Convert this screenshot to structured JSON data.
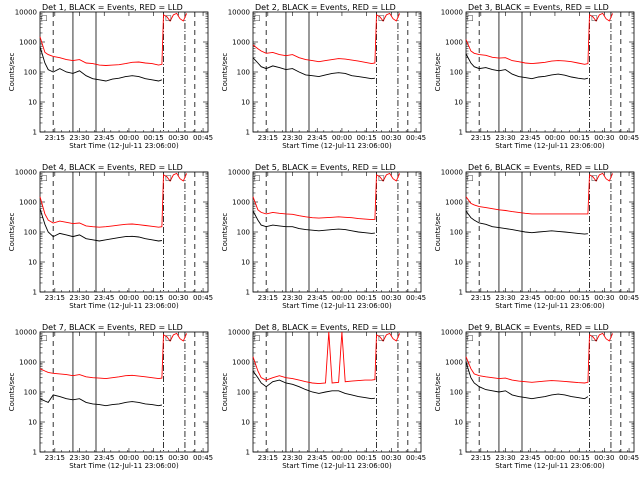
{
  "chart_data": {
    "type": "line",
    "layout": "3x3 grid",
    "xlabel": "Start Time (12-Jul-11 23:06:00)",
    "ylabel": "Counts/sec",
    "y_scale": "log",
    "ylim": [
      1,
      10000
    ],
    "ytick_labels": [
      "1",
      "10",
      "100",
      "1000",
      "10000"
    ],
    "xtick_labels": [
      "23:15",
      "23:30",
      "23:45",
      "00:00",
      "00:15",
      "00:30",
      "00:45"
    ],
    "x_unit": "minutes after start time",
    "xlim": [
      0,
      102
    ],
    "xticks": [
      9,
      24,
      39,
      54,
      69,
      84,
      99
    ],
    "series_colors": {
      "events": "#000000",
      "lld": "#ff0000"
    },
    "corner_markers": [
      "□",
      "□"
    ],
    "panels": [
      {
        "title": "Det 1, BLACK = Events, RED = LLD",
        "dashed_lines": [
          8,
          94
        ],
        "solid_lines": [
          20,
          34
        ],
        "dashdot_lines": [
          75,
          88
        ],
        "black_x": [
          0,
          3,
          5,
          8,
          12,
          16,
          20,
          24,
          28,
          32,
          36,
          40,
          44,
          48,
          52,
          56,
          60,
          64,
          68,
          72,
          74
        ],
        "black_y": [
          700,
          200,
          120,
          100,
          130,
          100,
          90,
          110,
          75,
          60,
          55,
          50,
          58,
          62,
          70,
          75,
          70,
          60,
          55,
          50,
          55
        ],
        "red_x": [
          0,
          3,
          5,
          8,
          12,
          16,
          20,
          24,
          28,
          32,
          36,
          40,
          44,
          48,
          52,
          56,
          60,
          64,
          68,
          72,
          74,
          75,
          77,
          79,
          81,
          83,
          85,
          87,
          89
        ],
        "red_y": [
          1500,
          450,
          380,
          330,
          300,
          260,
          240,
          260,
          200,
          190,
          170,
          165,
          170,
          175,
          190,
          210,
          215,
          200,
          190,
          170,
          180,
          8000,
          7000,
          5000,
          8000,
          9000,
          6000,
          5000,
          9000
        ]
      },
      {
        "title": "Det 2, BLACK = Events, RED = LLD",
        "dashed_lines": [
          8,
          94
        ],
        "solid_lines": [
          20,
          34
        ],
        "dashdot_lines": [
          75,
          88
        ],
        "black_x": [
          0,
          3,
          5,
          8,
          12,
          16,
          20,
          24,
          28,
          32,
          36,
          40,
          44,
          48,
          52,
          56,
          60,
          64,
          68,
          72,
          74
        ],
        "black_y": [
          300,
          200,
          150,
          130,
          160,
          140,
          120,
          130,
          100,
          80,
          75,
          70,
          80,
          90,
          95,
          90,
          75,
          70,
          65,
          60,
          62
        ],
        "red_x": [
          0,
          3,
          5,
          8,
          12,
          16,
          20,
          24,
          28,
          32,
          36,
          40,
          44,
          48,
          52,
          56,
          60,
          64,
          68,
          72,
          74,
          75,
          77,
          79,
          81,
          83,
          85,
          87,
          89
        ],
        "red_y": [
          800,
          600,
          500,
          420,
          450,
          380,
          350,
          380,
          300,
          260,
          240,
          220,
          240,
          260,
          280,
          270,
          250,
          230,
          210,
          190,
          200,
          8000,
          7000,
          5000,
          8000,
          9000,
          6000,
          5000,
          9000
        ]
      },
      {
        "title": "Det 3, BLACK = Events, RED = LLD",
        "dashed_lines": [
          8,
          94
        ],
        "solid_lines": [
          20,
          34
        ],
        "dashdot_lines": [
          75,
          88
        ],
        "black_x": [
          0,
          3,
          5,
          8,
          12,
          16,
          20,
          24,
          28,
          32,
          36,
          40,
          44,
          48,
          52,
          56,
          60,
          64,
          68,
          72,
          74
        ],
        "black_y": [
          400,
          200,
          150,
          130,
          140,
          120,
          110,
          120,
          85,
          70,
          65,
          60,
          68,
          72,
          80,
          85,
          78,
          68,
          62,
          58,
          62
        ],
        "red_x": [
          0,
          3,
          5,
          8,
          12,
          16,
          20,
          24,
          28,
          32,
          36,
          40,
          44,
          48,
          52,
          56,
          60,
          64,
          68,
          72,
          74,
          75,
          77,
          79,
          81,
          83,
          85,
          87,
          89
        ],
        "red_y": [
          1200,
          500,
          420,
          380,
          360,
          310,
          290,
          300,
          240,
          220,
          200,
          190,
          200,
          210,
          230,
          240,
          235,
          220,
          200,
          180,
          190,
          8000,
          7000,
          5000,
          8000,
          9000,
          6000,
          5000,
          9000
        ]
      },
      {
        "title": "Det 4, BLACK = Events, RED = LLD",
        "dashed_lines": [
          8,
          94
        ],
        "solid_lines": [
          20,
          34
        ],
        "dashdot_lines": [
          75,
          88
        ],
        "black_x": [
          0,
          3,
          5,
          8,
          12,
          16,
          20,
          24,
          28,
          32,
          36,
          40,
          44,
          48,
          52,
          56,
          60,
          64,
          68,
          72,
          74
        ],
        "black_y": [
          600,
          180,
          100,
          70,
          90,
          80,
          70,
          80,
          60,
          55,
          50,
          55,
          60,
          65,
          70,
          72,
          68,
          60,
          55,
          50,
          52
        ],
        "red_x": [
          0,
          3,
          5,
          8,
          12,
          16,
          20,
          24,
          28,
          32,
          36,
          40,
          44,
          48,
          52,
          56,
          60,
          64,
          68,
          72,
          74,
          75,
          77,
          79,
          81,
          83,
          85,
          87,
          89
        ],
        "red_y": [
          1500,
          400,
          250,
          200,
          230,
          210,
          190,
          200,
          160,
          150,
          145,
          150,
          160,
          170,
          180,
          185,
          175,
          165,
          155,
          145,
          150,
          8000,
          7000,
          5000,
          8000,
          9000,
          6000,
          5000,
          9000
        ]
      },
      {
        "title": "Det 5, BLACK = Events, RED = LLD",
        "dashed_lines": [
          8,
          94
        ],
        "solid_lines": [
          20,
          34
        ],
        "dashdot_lines": [
          75,
          88
        ],
        "black_x": [
          0,
          3,
          5,
          8,
          12,
          16,
          20,
          24,
          28,
          32,
          36,
          40,
          44,
          48,
          52,
          56,
          60,
          64,
          68,
          72,
          74
        ],
        "black_y": [
          500,
          250,
          170,
          150,
          170,
          160,
          150,
          150,
          130,
          120,
          115,
          110,
          115,
          120,
          125,
          120,
          110,
          100,
          95,
          90,
          92
        ],
        "red_x": [
          0,
          3,
          5,
          8,
          12,
          16,
          20,
          24,
          28,
          32,
          36,
          40,
          44,
          48,
          52,
          56,
          60,
          64,
          68,
          72,
          74,
          75,
          77,
          79,
          81,
          83,
          85,
          87,
          89
        ],
        "red_y": [
          1500,
          550,
          450,
          400,
          450,
          420,
          400,
          390,
          350,
          320,
          300,
          290,
          300,
          310,
          320,
          310,
          300,
          280,
          270,
          260,
          265,
          8000,
          7000,
          5000,
          8000,
          9000,
          6000,
          5000,
          9000
        ]
      },
      {
        "title": "Det 6, BLACK = Events, RED = LLD",
        "dashed_lines": [
          8,
          94
        ],
        "solid_lines": [
          20,
          34
        ],
        "dashdot_lines": [
          75,
          88
        ],
        "black_x": [
          0,
          3,
          5,
          8,
          12,
          16,
          20,
          24,
          28,
          32,
          36,
          40,
          44,
          48,
          52,
          56,
          60,
          64,
          68,
          72,
          74
        ],
        "black_y": [
          500,
          300,
          250,
          200,
          180,
          150,
          140,
          130,
          120,
          110,
          100,
          95,
          100,
          105,
          110,
          105,
          100,
          95,
          90,
          85,
          88
        ],
        "red_x": [
          0,
          3,
          5,
          8,
          12,
          16,
          20,
          24,
          28,
          32,
          36,
          40,
          44,
          48,
          52,
          56,
          60,
          64,
          68,
          72,
          74,
          75,
          77,
          79,
          81,
          83,
          85,
          87,
          89
        ],
        "red_y": [
          1500,
          900,
          800,
          700,
          650,
          600,
          550,
          520,
          480,
          450,
          420,
          400,
          400,
          400,
          400,
          400,
          400,
          400,
          400,
          400,
          400,
          8000,
          7000,
          5000,
          8000,
          9000,
          6000,
          5000,
          9000
        ]
      },
      {
        "title": "Det 7, BLACK = Events, RED = LLD",
        "dashed_lines": [
          8,
          94
        ],
        "solid_lines": [
          20,
          34
        ],
        "dashdot_lines": [
          75,
          88
        ],
        "black_x": [
          0,
          3,
          5,
          8,
          12,
          16,
          20,
          24,
          28,
          32,
          36,
          40,
          44,
          48,
          52,
          56,
          60,
          64,
          68,
          72,
          74
        ],
        "black_y": [
          60,
          50,
          45,
          80,
          70,
          60,
          55,
          60,
          45,
          40,
          38,
          35,
          38,
          40,
          45,
          48,
          45,
          40,
          38,
          35,
          37
        ],
        "red_x": [
          0,
          3,
          5,
          8,
          12,
          16,
          20,
          24,
          28,
          32,
          36,
          40,
          44,
          48,
          52,
          56,
          60,
          64,
          68,
          72,
          74,
          75,
          77,
          79,
          81,
          83,
          85,
          87,
          89
        ],
        "red_y": [
          600,
          500,
          450,
          420,
          400,
          380,
          350,
          380,
          320,
          300,
          290,
          280,
          300,
          320,
          350,
          360,
          340,
          320,
          300,
          280,
          290,
          8000,
          7000,
          5000,
          8000,
          9000,
          6000,
          5000,
          9000
        ]
      },
      {
        "title": "Det 8, BLACK = Events, RED = LLD",
        "dashed_lines": [
          8,
          94
        ],
        "solid_lines": [
          20,
          34
        ],
        "dashdot_lines": [
          75,
          88
        ],
        "black_x": [
          0,
          3,
          5,
          8,
          12,
          16,
          20,
          24,
          28,
          32,
          36,
          40,
          44,
          48,
          52,
          56,
          60,
          64,
          68,
          72,
          74
        ],
        "black_y": [
          500,
          300,
          200,
          150,
          220,
          250,
          200,
          180,
          150,
          120,
          100,
          90,
          100,
          110,
          110,
          90,
          80,
          70,
          65,
          60,
          62
        ],
        "red_x": [
          0,
          3,
          5,
          8,
          12,
          16,
          20,
          24,
          28,
          32,
          36,
          40,
          44,
          46,
          48,
          52,
          54,
          56,
          60,
          64,
          68,
          72,
          74,
          75,
          77,
          79,
          81,
          83,
          85,
          87,
          89
        ],
        "red_y": [
          1500,
          500,
          300,
          250,
          300,
          350,
          300,
          280,
          250,
          220,
          200,
          190,
          200,
          10000,
          200,
          210,
          10000,
          220,
          230,
          240,
          250,
          250,
          260,
          8000,
          7000,
          5000,
          8000,
          9000,
          6000,
          5000,
          9000
        ]
      },
      {
        "title": "Det 9, BLACK = Events, RED = LLD",
        "dashed_lines": [
          8,
          94
        ],
        "solid_lines": [
          20,
          34
        ],
        "dashdot_lines": [
          75,
          88
        ],
        "black_x": [
          0,
          3,
          5,
          8,
          12,
          16,
          20,
          24,
          28,
          32,
          36,
          40,
          44,
          48,
          52,
          56,
          60,
          64,
          68,
          72,
          74
        ],
        "black_y": [
          1000,
          300,
          200,
          150,
          120,
          110,
          100,
          110,
          80,
          70,
          65,
          60,
          65,
          70,
          80,
          85,
          80,
          70,
          65,
          60,
          70
        ],
        "red_x": [
          0,
          3,
          5,
          8,
          12,
          16,
          20,
          24,
          28,
          32,
          36,
          40,
          44,
          48,
          52,
          56,
          60,
          64,
          68,
          72,
          74,
          75,
          77,
          79,
          81,
          83,
          85,
          87,
          89
        ],
        "red_y": [
          1500,
          600,
          400,
          350,
          320,
          300,
          280,
          290,
          250,
          230,
          220,
          210,
          220,
          230,
          240,
          235,
          225,
          215,
          205,
          200,
          210,
          8000,
          7000,
          5000,
          8000,
          9000,
          6000,
          5000,
          9000
        ]
      }
    ]
  }
}
